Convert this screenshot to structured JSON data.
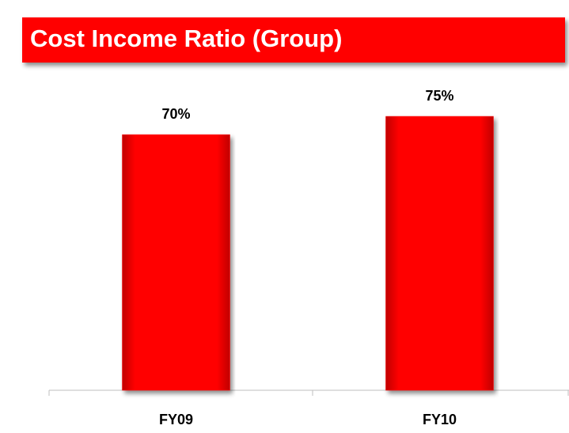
{
  "chart_data": {
    "type": "bar",
    "title": "Cost Income Ratio (Group)",
    "categories": [
      "FY09",
      "FY10"
    ],
    "values": [
      70,
      75
    ],
    "value_labels": [
      "70%",
      "75%"
    ],
    "color": "#ff0000"
  }
}
